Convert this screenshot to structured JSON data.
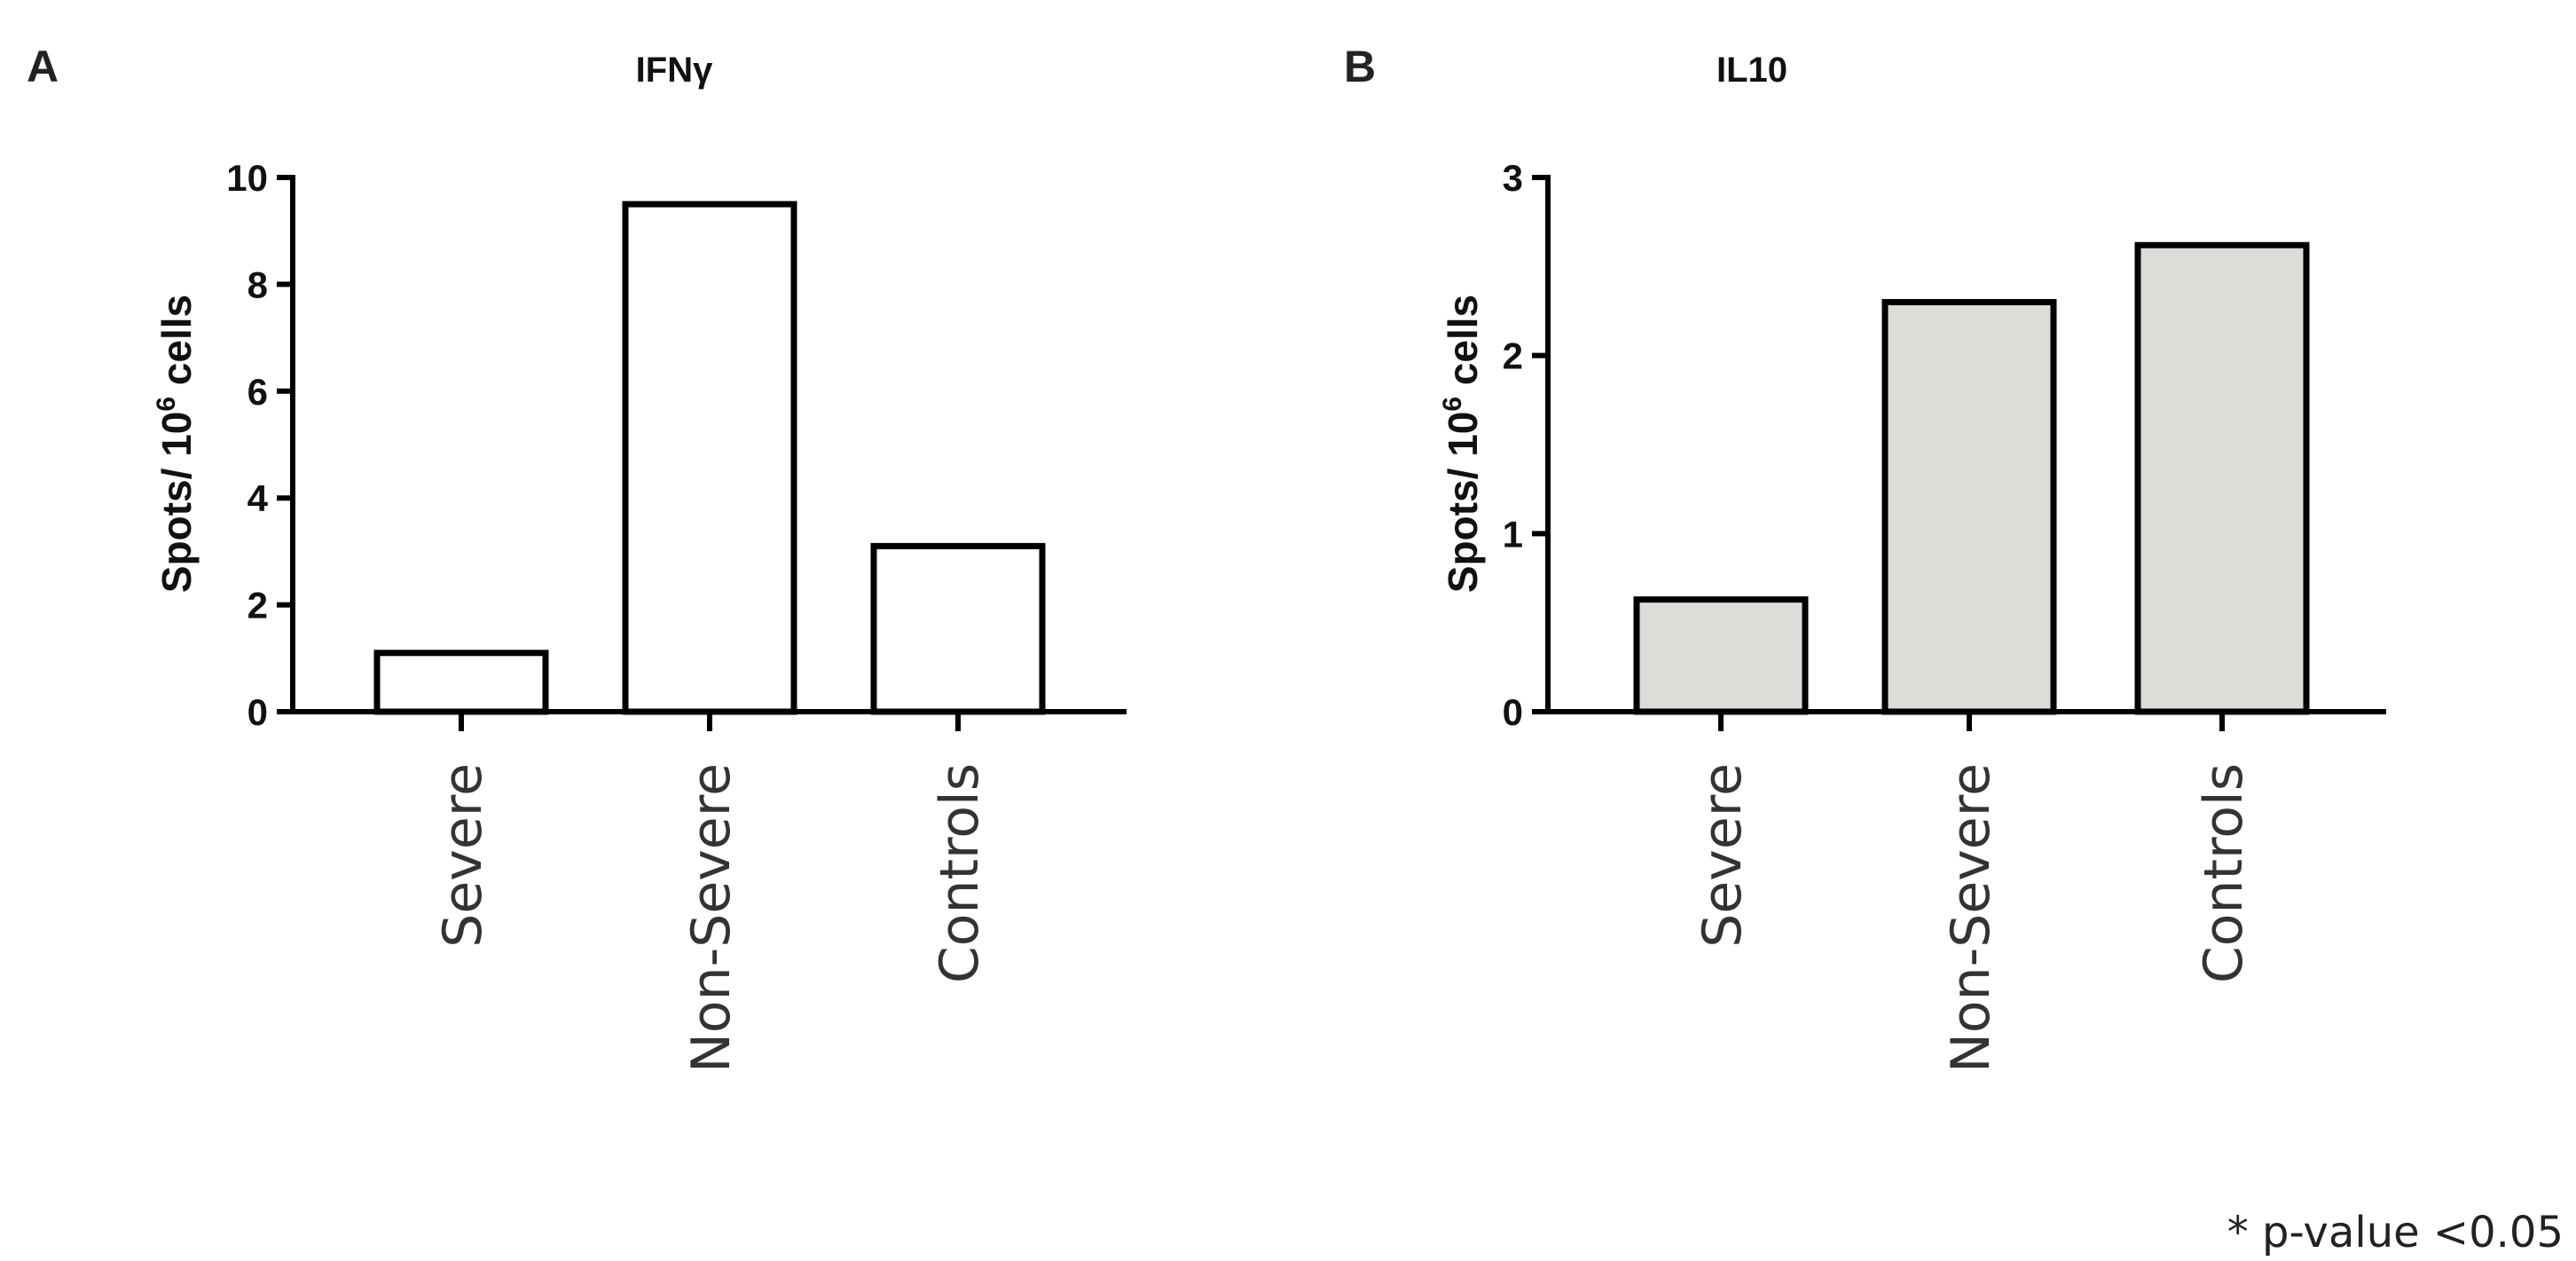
{
  "chart_data": [
    {
      "type": "bar",
      "panel": "A",
      "title": "IFNγ",
      "ylabel": "Spots/ 10⁶ cells",
      "ylabel_parts": [
        "Spots/ 10",
        "6",
        " cells"
      ],
      "categories": [
        "Severe",
        "Non-Severe",
        "Controls"
      ],
      "values": [
        1.1,
        9.5,
        3.1
      ],
      "ylim": [
        0,
        10
      ],
      "yticks": [
        0,
        2,
        4,
        6,
        8,
        10
      ],
      "bar_color": "#ffffff",
      "grid": false
    },
    {
      "type": "bar",
      "panel": "B",
      "title": "IL10",
      "ylabel": "Spots/ 10⁶ cells",
      "ylabel_parts": [
        "Spots/ 10",
        "6",
        " cells"
      ],
      "categories": [
        "Severe",
        "Non-Severe",
        "Controls"
      ],
      "values": [
        0.63,
        2.3,
        2.62
      ],
      "ylim": [
        0,
        3
      ],
      "yticks": [
        0,
        1,
        2,
        3
      ],
      "bar_color": "#dcdcd8",
      "grid": false
    }
  ],
  "footnote": "* p-value <0.05"
}
